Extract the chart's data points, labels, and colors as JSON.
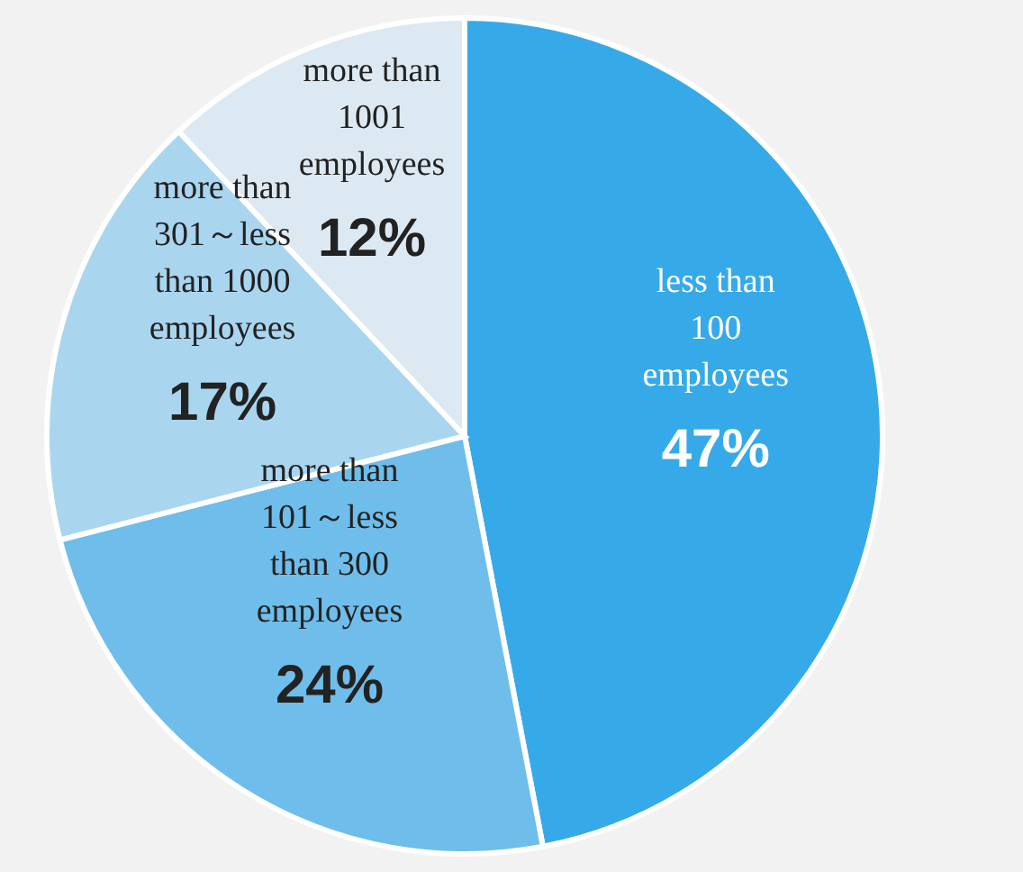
{
  "chart_data": {
    "type": "pie",
    "categories": [
      "less than 100 employees",
      "more than 101～less than 300 employees",
      "more than 301～less than 1000 employees",
      "more than 1001 employees"
    ],
    "values": [
      47,
      24,
      17,
      12
    ],
    "colors": [
      "#36aae8",
      "#6fbdea",
      "#a9d5ef",
      "#dde9f2"
    ],
    "value_labels": [
      "47%",
      "24%",
      "17%",
      "12%"
    ]
  }
}
